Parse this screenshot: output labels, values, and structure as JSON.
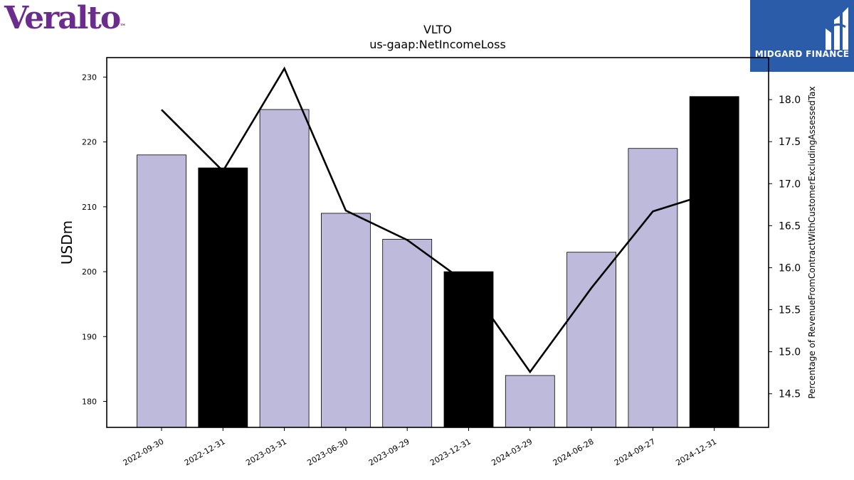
{
  "logos": {
    "left": {
      "text": "Veralto",
      "mark": "™",
      "color": "#6b2d8c"
    },
    "right": {
      "text": "MIDGARD FINANCE",
      "background": "#2a5caa"
    }
  },
  "chart_data": {
    "type": "bar",
    "title": "VLTO",
    "subtitle": "us-gaap:NetIncomeLoss",
    "categories": [
      "2022-09-30",
      "2022-12-31",
      "2023-03-31",
      "2023-06-30",
      "2023-09-29",
      "2023-12-31",
      "2024-03-29",
      "2024-06-28",
      "2024-09-27",
      "2024-12-31"
    ],
    "ylabel": "USDm",
    "ylim": [
      176,
      233
    ],
    "yticks": [
      180,
      190,
      200,
      210,
      220,
      230
    ],
    "y2label": "Percentage of RevenueFromContractWithCustomerExcludingAssessedTax",
    "y2lim": [
      14.1,
      18.5
    ],
    "y2ticks": [
      14.5,
      15.0,
      15.5,
      16.0,
      16.5,
      17.0,
      17.5,
      18.0
    ],
    "series": [
      {
        "kind": "bar",
        "values": [
          218,
          216,
          225,
          209,
          205,
          200,
          184,
          203,
          219,
          227
        ],
        "colors": [
          "#bebadb",
          "#000000",
          "#bebadb",
          "#bebadb",
          "#bebadb",
          "#000000",
          "#bebadb",
          "#bebadb",
          "#bebadb",
          "#000000"
        ]
      },
      {
        "kind": "line",
        "axis": "right",
        "values": [
          17.88,
          17.15,
          18.37,
          16.68,
          16.33,
          15.8,
          14.76,
          15.76,
          16.67,
          16.9
        ]
      }
    ],
    "grid": false
  }
}
